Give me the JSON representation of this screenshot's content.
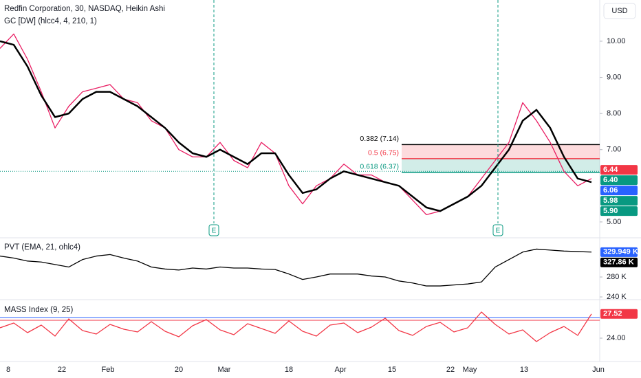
{
  "header": {
    "title": "Redfin Corporation, 30, NASDAQ, Heikin Ashi",
    "indicator": "GC [DW] (hlcc4, 4, 210, 1)",
    "currency": "USD"
  },
  "xlim": [
    0,
    43.6
  ],
  "xticks": [
    {
      "value": 0.6,
      "label": "8"
    },
    {
      "value": 4.5,
      "label": "22"
    },
    {
      "value": 7.85,
      "label": "Feb"
    },
    {
      "value": 13,
      "label": "20"
    },
    {
      "value": 16.3,
      "label": "Mar"
    },
    {
      "value": 21,
      "label": "18"
    },
    {
      "value": 24.75,
      "label": "Apr"
    },
    {
      "value": 28.5,
      "label": "15"
    },
    {
      "value": 32.75,
      "label": "22"
    },
    {
      "value": 34.15,
      "label": "May"
    },
    {
      "value": 38.1,
      "label": "13"
    },
    {
      "value": 43.5,
      "label": "Jun"
    }
  ],
  "price_pane": {
    "type": "line",
    "ylim": [
      4.58,
      11.14
    ],
    "yticks": [
      {
        "value": 10,
        "label": "10.00"
      },
      {
        "value": 9,
        "label": "9.00"
      },
      {
        "value": 8,
        "label": "8.00"
      },
      {
        "value": 7,
        "label": "7.00"
      },
      {
        "value": 5,
        "label": "5.00"
      }
    ],
    "series": [
      {
        "color": "#e91e63",
        "values": [
          9.8,
          10.2,
          9.5,
          8.6,
          7.6,
          8.2,
          8.6,
          8.7,
          8.8,
          8.4,
          8.3,
          7.8,
          7.6,
          7.0,
          6.8,
          6.8,
          7.2,
          6.7,
          6.5,
          7.2,
          6.9,
          6.0,
          5.5,
          6.0,
          6.2,
          6.6,
          6.3,
          6.3,
          6.1,
          6.0,
          5.6,
          5.2,
          5.3,
          5.5,
          5.7,
          6.2,
          6.7,
          7.2,
          8.3,
          7.8,
          7.2,
          6.4,
          6.0,
          6.2
        ]
      },
      {
        "color": "#000000",
        "values": [
          10.0,
          9.9,
          9.3,
          8.5,
          7.9,
          8.0,
          8.4,
          8.6,
          8.6,
          8.4,
          8.2,
          7.9,
          7.6,
          7.2,
          6.9,
          6.8,
          7.0,
          6.8,
          6.6,
          6.9,
          6.9,
          6.3,
          5.8,
          5.9,
          6.2,
          6.4,
          6.3,
          6.2,
          6.1,
          6.0,
          5.7,
          5.4,
          5.3,
          5.5,
          5.7,
          6.0,
          6.5,
          7.0,
          7.8,
          8.1,
          7.6,
          6.8,
          6.2,
          6.1
        ]
      }
    ],
    "fib": {
      "x": 29.2,
      "levels": [
        {
          "value": 7.14,
          "label": "0.382 (7.14)",
          "color": "#000000"
        },
        {
          "value": 6.75,
          "label": "0.5 (6.75)",
          "color": "#f23645"
        },
        {
          "value": 6.37,
          "label": "0.618 (6.37)",
          "color": "#089981"
        }
      ]
    },
    "last_price": 6.4,
    "tags": [
      {
        "value": 6.44,
        "label": "6.44",
        "color": "#f23645"
      },
      {
        "value": 6.4,
        "label": "6.40",
        "color": "#089981"
      },
      {
        "value": 6.06,
        "label": "6.06",
        "color": "#2962ff"
      },
      {
        "value": 5.98,
        "label": "5.98",
        "color": "#089981"
      },
      {
        "value": 5.9,
        "label": "5.90",
        "color": "#089981"
      }
    ],
    "events": [
      {
        "x": 15.55,
        "label": "E"
      },
      {
        "x": 36.2,
        "label": "E"
      }
    ]
  },
  "pvt_pane": {
    "title": "PVT (EMA, 21, ohlc4)",
    "type": "line",
    "ylim": [
      235.9,
      355.9
    ],
    "yticks": [
      {
        "value": 280,
        "label": "280 K"
      },
      {
        "value": 240,
        "label": "240 K"
      }
    ],
    "series": [
      {
        "color": "#000000",
        "values": [
          322,
          318,
          312,
          310,
          305,
          300,
          315,
          322,
          325,
          318,
          312,
          300,
          296,
          294,
          298,
          296,
          300,
          298,
          298,
          296,
          295,
          286,
          275,
          280,
          286,
          286,
          286,
          282,
          280,
          272,
          268,
          262,
          262,
          264,
          266,
          270,
          300,
          315,
          330,
          336,
          334,
          332,
          331,
          330
        ]
      }
    ],
    "tags": [
      {
        "value": 329.949,
        "label": "329.949 K",
        "color": "#2962ff"
      },
      {
        "value": 327.86,
        "label": "327.86 K",
        "color": "#000000"
      }
    ]
  },
  "mass_pane": {
    "title": "MASS Index (9, 25)",
    "type": "line",
    "ylim": [
      20.7,
      29.4
    ],
    "yticks": [
      {
        "value": 24,
        "label": "24.00"
      }
    ],
    "levels": [
      {
        "value": 27.0,
        "color": "#2962ff"
      },
      {
        "value": 26.6,
        "color": "#f23645"
      }
    ],
    "series": [
      {
        "color": "#f23645",
        "values": [
          25.5,
          26.2,
          24.8,
          25.9,
          24.3,
          26.8,
          25.1,
          24.6,
          26.0,
          25.3,
          24.9,
          26.4,
          25.0,
          24.2,
          25.8,
          26.7,
          25.2,
          24.5,
          26.1,
          25.4,
          24.7,
          26.5,
          25.0,
          24.3,
          25.9,
          26.2,
          24.8,
          25.6,
          26.9,
          25.1,
          24.4,
          25.7,
          26.3,
          24.9,
          25.5,
          27.8,
          26.0,
          24.6,
          25.2,
          23.5,
          24.8,
          25.7,
          24.4,
          27.52
        ]
      }
    ],
    "tags": [
      {
        "value": 27.52,
        "label": "27.52",
        "color": "#f23645"
      }
    ]
  }
}
